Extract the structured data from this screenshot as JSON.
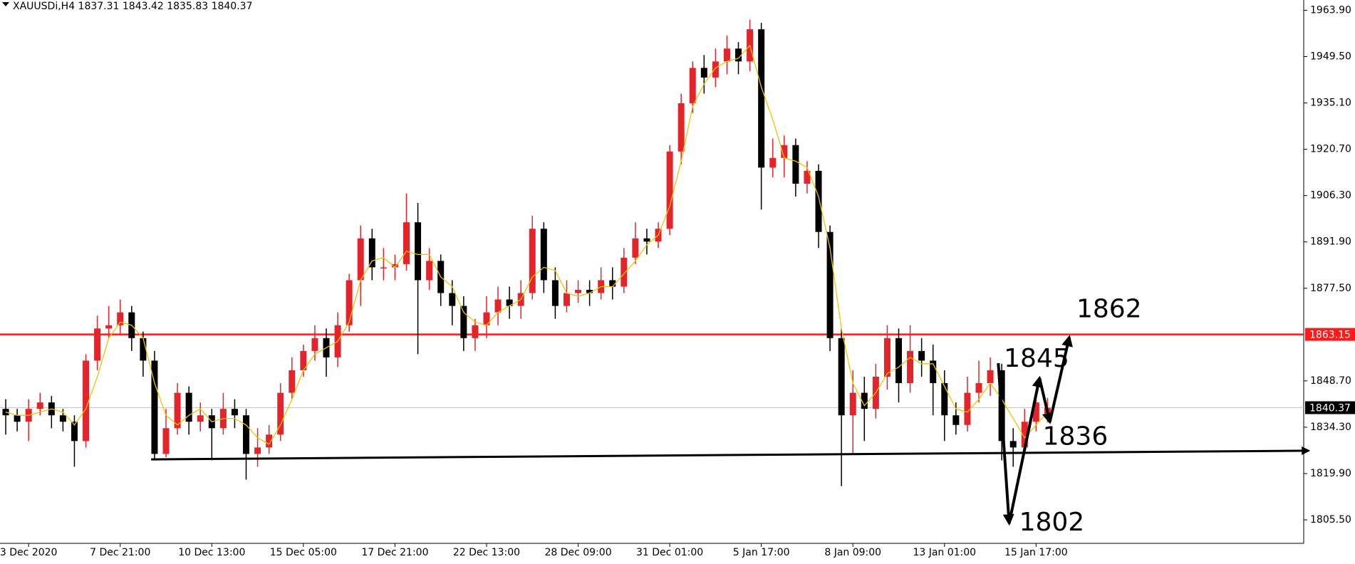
{
  "chart_data": {
    "type": "candlestick",
    "title": "XAUUSDi,H4  1837.31 1843.42 1835.83 1840.37",
    "categories": [
      null,
      null,
      "3 Dec 2020",
      null,
      null,
      null,
      null,
      null,
      null,
      null,
      "7 Dec 21:00",
      null,
      null,
      null,
      null,
      null,
      null,
      null,
      "10 Dec 13:00",
      null,
      null,
      null,
      null,
      null,
      null,
      null,
      "15 Dec 05:00",
      null,
      null,
      null,
      null,
      null,
      null,
      null,
      "17 Dec 21:00",
      null,
      null,
      null,
      null,
      null,
      null,
      null,
      "22 Dec 13:00",
      null,
      null,
      null,
      null,
      null,
      null,
      null,
      "28 Dec 09:00",
      null,
      null,
      null,
      null,
      null,
      null,
      null,
      "31 Dec 01:00",
      null,
      null,
      null,
      null,
      null,
      null,
      null,
      "5 Jan 17:00",
      null,
      null,
      null,
      null,
      null,
      null,
      null,
      "8 Jan 09:00",
      null,
      null,
      null,
      null,
      null,
      null,
      null,
      "13 Jan 01:00",
      null,
      null,
      null,
      null,
      null,
      null,
      null,
      "15 Jan 17:00",
      null
    ],
    "open": [
      1840,
      1838,
      1836,
      1840,
      1842,
      1838,
      1836,
      1830,
      1855,
      1865,
      1866,
      1870,
      1862,
      1855,
      1826,
      1834,
      1845,
      1836,
      1838,
      1834,
      1840,
      1838,
      1826,
      1828,
      1832,
      1845,
      1852,
      1858,
      1862,
      1856,
      1866,
      1880,
      1893,
      1884,
      1884,
      1885,
      1898,
      1880,
      1886,
      1876,
      1872,
      1862,
      1866,
      1870,
      1874,
      1872,
      1876,
      1896,
      1880,
      1872,
      1876,
      1877,
      1876,
      1880,
      1878,
      1887,
      1893,
      1892,
      1896,
      1920,
      1935,
      1946,
      1943,
      1948,
      1952,
      1948,
      1958,
      1915,
      1918,
      1922,
      1910,
      1914,
      1895,
      1862,
      1838,
      1845,
      1840,
      1850,
      1862,
      1848,
      1858,
      1855,
      1848,
      1838,
      1835,
      1845,
      1848,
      1852,
      1830,
      1828,
      1836,
      1837.31
    ],
    "high": [
      1843,
      1840,
      1843,
      1845,
      1844,
      1840,
      1838,
      1857,
      1869,
      1872,
      1874,
      1872,
      1864,
      1858,
      1840,
      1848,
      1847,
      1842,
      1840,
      1845,
      1843,
      1840,
      1834,
      1835,
      1848,
      1856,
      1860,
      1866,
      1865,
      1870,
      1882,
      1897,
      1896,
      1890,
      1888,
      1907,
      1904,
      1890,
      1888,
      1880,
      1875,
      1868,
      1875,
      1878,
      1878,
      1880,
      1900,
      1898,
      1884,
      1880,
      1880,
      1880,
      1884,
      1884,
      1890,
      1898,
      1896,
      1898,
      1922,
      1938,
      1948,
      1950,
      1952,
      1956,
      1954,
      1961,
      1960,
      1924,
      1925,
      1924,
      1917,
      1916,
      1897,
      1865,
      1852,
      1850,
      1854,
      1866,
      1865,
      1866,
      1862,
      1860,
      1852,
      1842,
      1850,
      1855,
      1856,
      1854,
      1834,
      1840,
      1844,
      1843.42
    ],
    "low": [
      1832,
      1833,
      1830,
      1838,
      1834,
      1833,
      1822,
      1828,
      1852,
      1862,
      1863,
      1858,
      1850,
      1824,
      1825,
      1832,
      1832,
      1833,
      1824,
      1832,
      1834,
      1818,
      1822,
      1826,
      1830,
      1843,
      1850,
      1855,
      1850,
      1853,
      1864,
      1872,
      1880,
      1880,
      1880,
      1883,
      1857,
      1877,
      1872,
      1866,
      1858,
      1858,
      1862,
      1866,
      1868,
      1868,
      1874,
      1876,
      1868,
      1870,
      1873,
      1872,
      1874,
      1874,
      1876,
      1885,
      1888,
      1890,
      1894,
      1916,
      1932,
      1938,
      1940,
      1944,
      1944,
      1945,
      1902,
      1912,
      1912,
      1906,
      1907,
      1890,
      1858,
      1816,
      1826,
      1830,
      1837,
      1846,
      1842,
      1845,
      1850,
      1838,
      1830,
      1832,
      1833,
      1842,
      1844,
      1824,
      1822,
      1826,
      1833,
      1835.83
    ],
    "close": [
      1838,
      1836,
      1840,
      1842,
      1838,
      1836,
      1830,
      1855,
      1865,
      1866,
      1870,
      1862,
      1855,
      1826,
      1834,
      1845,
      1836,
      1838,
      1834,
      1840,
      1838,
      1826,
      1828,
      1832,
      1845,
      1852,
      1858,
      1862,
      1856,
      1866,
      1880,
      1893,
      1884,
      1884,
      1885,
      1898,
      1880,
      1886,
      1876,
      1872,
      1862,
      1866,
      1870,
      1874,
      1872,
      1876,
      1896,
      1880,
      1872,
      1876,
      1877,
      1876,
      1880,
      1878,
      1887,
      1893,
      1892,
      1896,
      1920,
      1935,
      1946,
      1943,
      1948,
      1952,
      1948,
      1958,
      1915,
      1918,
      1922,
      1910,
      1914,
      1895,
      1862,
      1838,
      1845,
      1840,
      1850,
      1862,
      1848,
      1858,
      1855,
      1848,
      1838,
      1835,
      1845,
      1848,
      1852,
      1830,
      1828,
      1836,
      1842,
      1840.37
    ],
    "up_color": "#e3242b",
    "down_color": "#000000",
    "ma": {
      "color": "#f2c200",
      "values": [
        1839,
        1838,
        1838,
        1839,
        1840,
        1839,
        1835,
        1840,
        1850,
        1862,
        1867,
        1866,
        1862,
        1848,
        1838,
        1835,
        1838,
        1840,
        1836,
        1837,
        1837,
        1835,
        1831,
        1829,
        1835,
        1843,
        1852,
        1857,
        1859,
        1861,
        1867,
        1880,
        1886,
        1887,
        1884,
        1889,
        1888,
        1888,
        1881,
        1878,
        1870,
        1867,
        1866,
        1870,
        1872,
        1874,
        1881,
        1884,
        1883,
        1876,
        1875,
        1876,
        1878,
        1878,
        1882,
        1886,
        1891,
        1894,
        1903,
        1917,
        1934,
        1941,
        1946,
        1948,
        1949,
        1953,
        1940,
        1930,
        1918,
        1917,
        1915,
        1906,
        1890,
        1865,
        1848,
        1841,
        1845,
        1851,
        1853,
        1856,
        1854,
        1854,
        1847,
        1840,
        1839,
        1843,
        1848,
        1843,
        1837,
        1831,
        1835,
        1839
      ]
    },
    "ylim": [
      1798.2,
      1967.1
    ],
    "yticks": [
      {
        "value": 1963.9,
        "label": "1963.90"
      },
      {
        "value": 1949.5,
        "label": "1949.50"
      },
      {
        "value": 1935.1,
        "label": "1935.10"
      },
      {
        "value": 1920.7,
        "label": "1920.70"
      },
      {
        "value": 1906.3,
        "label": "1906.30"
      },
      {
        "value": 1891.9,
        "label": "1891.90"
      },
      {
        "value": 1877.5,
        "label": "1877.50"
      },
      {
        "value": 1848.7,
        "label": "1848.70"
      },
      {
        "value": 1834.3,
        "label": "1834.30"
      },
      {
        "value": 1819.9,
        "label": "1819.90"
      },
      {
        "value": 1805.5,
        "label": "1805.50"
      }
    ],
    "levels": [
      {
        "value": 1863.15,
        "color": "#ff1a1a",
        "box_color": "#ff1a1a"
      },
      {
        "value": 1840.37,
        "color": "#c8c8c8",
        "box_color": "#000000"
      }
    ],
    "annotations": {
      "support": {
        "x": [
          12.7,
          113.8
        ],
        "y": [
          1824.3,
          1827.0
        ]
      },
      "path": {
        "x": [
          86.7,
          87.65,
          90.3,
          91.2,
          92.9
        ],
        "y": [
          1854.2,
          1804.4,
          1849.6,
          1835.9,
          1862.3
        ]
      },
      "labels": [
        "1862",
        "1845",
        "1836",
        "1802"
      ]
    }
  }
}
